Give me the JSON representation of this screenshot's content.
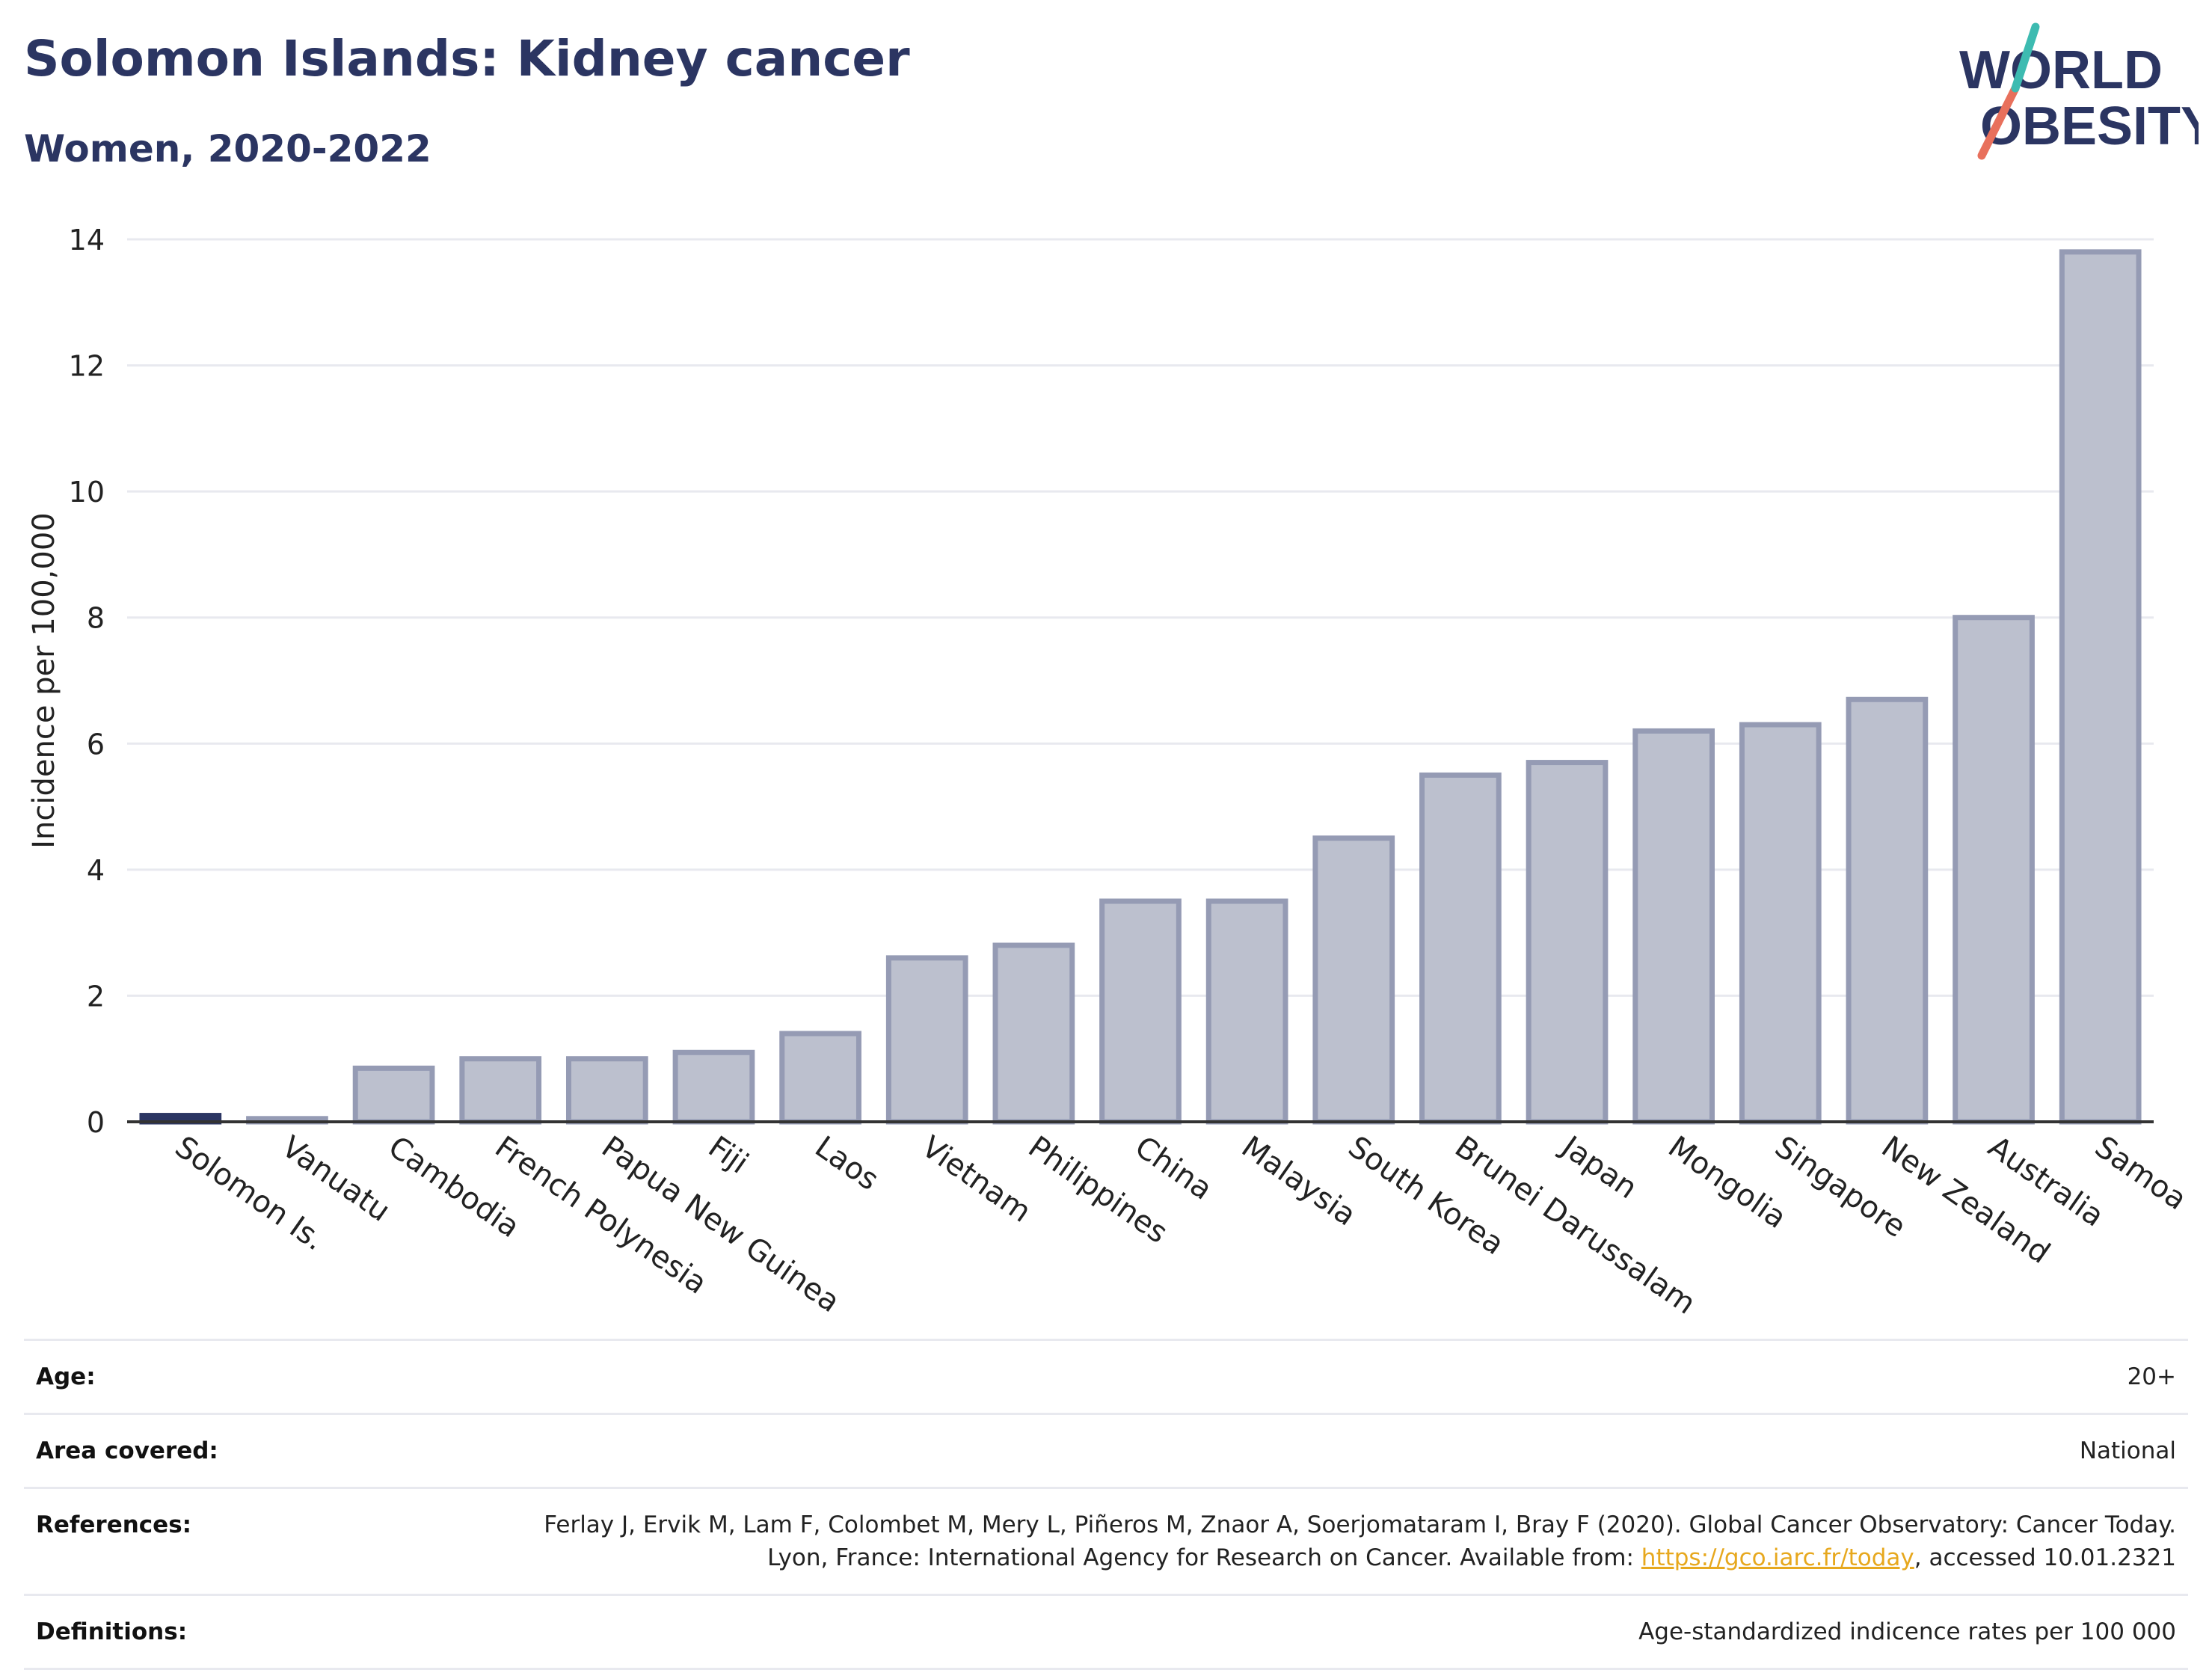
{
  "header": {
    "title": "Solomon Islands: Kidney cancer",
    "subtitle": "Women, 2020-2022"
  },
  "logo": {
    "line1": "WORLD",
    "line2": "OBESITY",
    "accent": "#e8705c",
    "accent2": "#3dbbb1"
  },
  "chart_data": {
    "type": "bar",
    "ylabel": "Incidence per 100,000",
    "ylim": [
      0,
      14
    ],
    "yticks": [
      0,
      2,
      4,
      6,
      8,
      10,
      12,
      14
    ],
    "grid": true,
    "categories": [
      "Solomon Is.",
      "Vanuatu",
      "Cambodia",
      "French Polynesia",
      "Papua New Guinea",
      "Fiji",
      "Laos",
      "Vietnam",
      "Philippines",
      "China",
      "Malaysia",
      "South Korea",
      "Brunei Darussalam",
      "Japan",
      "Mongolia",
      "Singapore",
      "New Zealand",
      "Australia",
      "Samoa"
    ],
    "values": [
      0.1,
      0.05,
      0.85,
      1.0,
      1.0,
      1.1,
      1.4,
      2.6,
      2.8,
      3.5,
      3.5,
      4.5,
      5.5,
      5.7,
      6.2,
      6.3,
      6.7,
      8.0,
      13.8
    ],
    "highlight": "Solomon Is.",
    "colors": {
      "bar": "#bcc0ce",
      "bar_edge": "#959bb4",
      "highlight": "#2b3562",
      "grid": "#e8e9ef",
      "axis": "#333333"
    }
  },
  "meta": {
    "age_label": "Age:",
    "age_value": "20+",
    "area_label": "Area covered:",
    "area_value": "National",
    "references_label": "References:",
    "references_text": "Ferlay J, Ervik M, Lam F, Colombet M, Mery L, Piñeros M, Znaor A, Soerjomataram I, Bray F (2020). Global Cancer Observatory: Cancer Today. Lyon, France: International Agency for Research on Cancer. Available from: ",
    "references_link": "https://gco.iarc.fr/today",
    "references_tail": ", accessed 10.01.2321",
    "definitions_label": "Definitions:",
    "definitions_value": "Age-standardized indicence rates per 100 000"
  }
}
